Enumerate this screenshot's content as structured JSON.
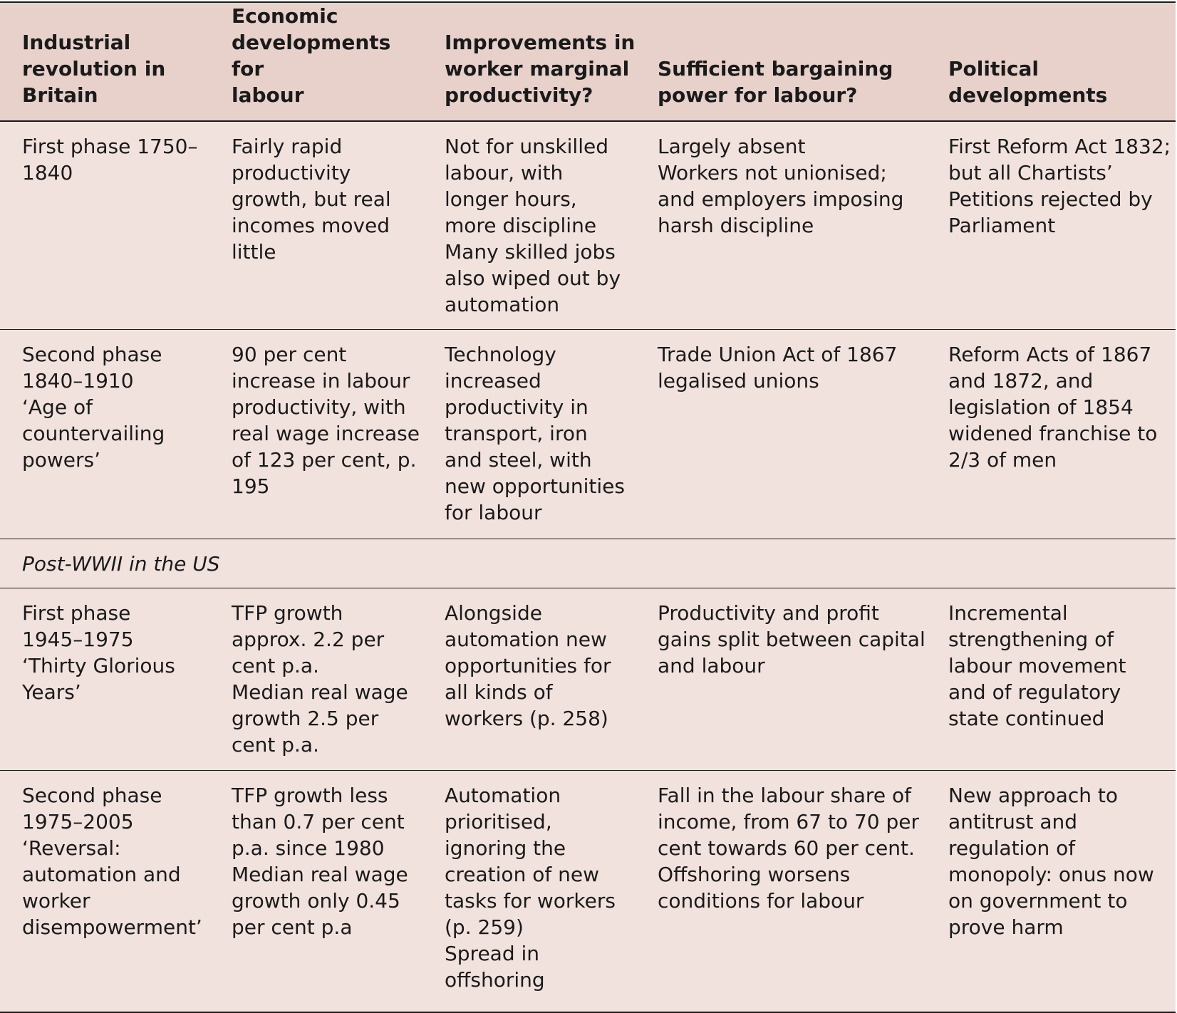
{
  "table": {
    "headers": [
      "Industrial\nrevolution in\nBritain",
      "Economic\ndevelopments for\nlabour",
      "Improvements in\nworker marginal\nproductivity?",
      "Sufficient bargaining\npower for labour?",
      "Political\ndevelopments"
    ],
    "rows": [
      {
        "cells": [
          "First phase 1750–\n1840",
          "Fairly rapid\nproductivity\ngrowth, but real\nincomes moved\nlittle",
          "Not for unskilled\nlabour, with\nlonger hours,\nmore discipline\nMany skilled jobs\nalso wiped out by\nautomation",
          "Largely absent\nWorkers not unionised;\nand employers imposing\nharsh discipline",
          "First Reform Act 1832;\nbut all Chartists’\nPetitions rejected by\nParliament"
        ]
      },
      {
        "cells": [
          "Second phase\n1840–1910\n‘Age of\ncountervailing\npowers’",
          "90 per cent\nincrease in labour\nproductivity, with\nreal wage increase\nof 123 per cent, p.\n195",
          "Technology\nincreased\nproductivity in\ntransport, iron\nand steel, with\nnew opportunities\nfor labour",
          "Trade Union Act of 1867\nlegalised unions",
          "Reform Acts of 1867\nand 1872, and\nlegislation of 1854\nwidened franchise to\n2/3 of men"
        ]
      }
    ],
    "section_label": "Post-WWII in the US",
    "rows_us": [
      {
        "cells": [
          "First phase\n1945–1975\n‘Thirty Glorious\nYears’",
          "TFP growth\napprox. 2.2 per\ncent p.a.\nMedian real wage\ngrowth 2.5 per\ncent p.a.",
          "Alongside\nautomation new\nopportunities for\nall kinds of\nworkers (p. 258)",
          "Productivity and profit\ngains split between capital\nand labour",
          "Incremental\nstrengthening of\nlabour movement\nand of regulatory\nstate continued"
        ]
      },
      {
        "cells": [
          "Second phase\n1975–2005\n‘Reversal:\nautomation and\nworker\ndisempowerment’",
          "TFP growth less\nthan 0.7 per cent\np.a. since 1980\nMedian real wage\ngrowth only 0.45\nper cent p.a",
          "Automation\nprioritised,\nignoring the\ncreation of new\ntasks for workers\n(p. 259)\nSpread in\noffshoring",
          "Fall in the labour share of\nincome, from 67 to 70 per\ncent towards 60 per cent.\nOffshoring worsens\nconditions for labour",
          "New approach to\nantitrust and\nregulation of\nmonopoly: onus now\non government to\nprove harm"
        ]
      }
    ]
  },
  "colors": {
    "header_bg": "#e9d1cb",
    "body_bg": "#f2e2de",
    "rule": "#1a1a1a"
  }
}
